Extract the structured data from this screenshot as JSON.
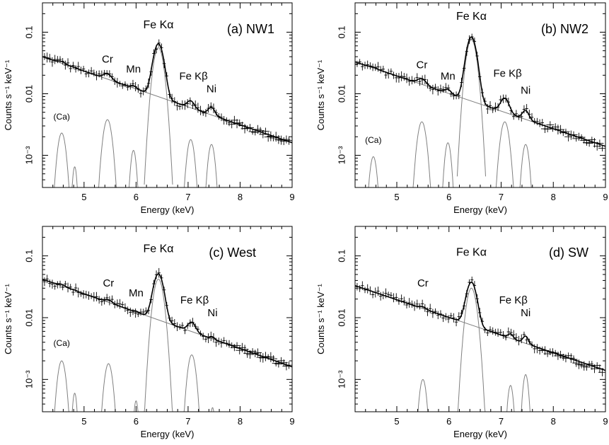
{
  "chart_data": [
    {
      "type": "line",
      "panel_label": "(a) NW1",
      "xlabel": "Energy (keV)",
      "ylabel": "Counts s⁻¹ keV⁻¹",
      "xlim": [
        4.2,
        9
      ],
      "ylim": [
        0.0003,
        0.3
      ],
      "yscale": "log",
      "x_ticks": [
        "5",
        "6",
        "7",
        "8",
        "9"
      ],
      "y_ticks": [
        "10⁻³",
        "0.01",
        "0.1"
      ],
      "continuum": {
        "x": [
          4.2,
          9
        ],
        "y": [
          0.04,
          0.0016
        ]
      },
      "lines": [
        {
          "name": "(Ca)",
          "center": 4.57,
          "amp": 0.0023,
          "sigma": 0.07,
          "label_show": true,
          "label_y": 0.0038
        },
        {
          "name": "",
          "center": 4.82,
          "amp": 0.00065,
          "sigma": 0.04,
          "label_show": false
        },
        {
          "name": "Cr",
          "center": 5.45,
          "amp": 0.0038,
          "sigma": 0.075,
          "label_show": true,
          "label_y": 0.032
        },
        {
          "name": "Mn",
          "center": 5.95,
          "amp": 0.0012,
          "sigma": 0.05,
          "label_show": true,
          "label_y": 0.022
        },
        {
          "name": "Fe Kα",
          "center": 6.43,
          "amp": 0.056,
          "sigma": 0.085,
          "label_show": true,
          "label_y": 0.115
        },
        {
          "name": "Fe Kβ",
          "center": 7.05,
          "amp": 0.0018,
          "sigma": 0.065,
          "label_show": true,
          "label_y": 0.017
        },
        {
          "name": "Ni",
          "center": 7.45,
          "amp": 0.0015,
          "sigma": 0.06,
          "label_show": true,
          "label_y": 0.0105
        }
      ]
    },
    {
      "type": "line",
      "panel_label": "(b) NW2",
      "xlabel": "Energy (keV)",
      "ylabel": "Counts s⁻¹ keV⁻¹",
      "xlim": [
        4.2,
        9
      ],
      "ylim": [
        0.0003,
        0.3
      ],
      "yscale": "log",
      "x_ticks": [
        "5",
        "6",
        "7",
        "8",
        "9"
      ],
      "y_ticks": [
        "10⁻³",
        "0.01",
        "0.1"
      ],
      "continuum": {
        "x": [
          4.2,
          9
        ],
        "y": [
          0.033,
          0.0014
        ]
      },
      "lines": [
        {
          "name": "(Ca)",
          "center": 4.55,
          "amp": 0.00095,
          "sigma": 0.06,
          "label_show": true,
          "label_y": 0.0016
        },
        {
          "name": "Cr",
          "center": 5.48,
          "amp": 0.0035,
          "sigma": 0.075,
          "label_show": true,
          "label_y": 0.026
        },
        {
          "name": "Mn",
          "center": 5.98,
          "amp": 0.0016,
          "sigma": 0.055,
          "label_show": true,
          "label_y": 0.017
        },
        {
          "name": "Fe Kα",
          "center": 6.43,
          "amp": 0.076,
          "sigma": 0.085,
          "label_show": true,
          "label_y": 0.16
        },
        {
          "name": "Fe Kβ",
          "center": 7.07,
          "amp": 0.0035,
          "sigma": 0.075,
          "label_show": true,
          "label_y": 0.019
        },
        {
          "name": "Ni",
          "center": 7.47,
          "amp": 0.0015,
          "sigma": 0.06,
          "label_show": true,
          "label_y": 0.01
        }
      ]
    },
    {
      "type": "line",
      "panel_label": "(c) West",
      "xlabel": "Energy (keV)",
      "ylabel": "Counts s⁻¹ keV⁻¹",
      "xlim": [
        4.2,
        9
      ],
      "ylim": [
        0.0003,
        0.3
      ],
      "yscale": "log",
      "x_ticks": [
        "5",
        "6",
        "7",
        "8",
        "9"
      ],
      "y_ticks": [
        "10⁻³",
        "0.01",
        "0.1"
      ],
      "continuum": {
        "x": [
          4.2,
          9
        ],
        "y": [
          0.042,
          0.0016
        ]
      },
      "lines": [
        {
          "name": "(Ca)",
          "center": 4.57,
          "amp": 0.002,
          "sigma": 0.07,
          "label_show": true,
          "label_y": 0.0035
        },
        {
          "name": "",
          "center": 4.82,
          "amp": 0.0006,
          "sigma": 0.04,
          "label_show": false
        },
        {
          "name": "Cr",
          "center": 5.47,
          "amp": 0.0018,
          "sigma": 0.07,
          "label_show": true,
          "label_y": 0.032
        },
        {
          "name": "Mn",
          "center": 6.0,
          "amp": 0.00045,
          "sigma": 0.04,
          "label_show": true,
          "label_y": 0.022
        },
        {
          "name": "Fe Kα",
          "center": 6.43,
          "amp": 0.042,
          "sigma": 0.085,
          "label_show": true,
          "label_y": 0.115
        },
        {
          "name": "Fe Kβ",
          "center": 7.07,
          "amp": 0.0025,
          "sigma": 0.07,
          "label_show": true,
          "label_y": 0.017
        },
        {
          "name": "Ni",
          "center": 7.47,
          "amp": 0.00035,
          "sigma": 0.04,
          "label_show": true,
          "label_y": 0.0105
        }
      ]
    },
    {
      "type": "line",
      "panel_label": "(d) SW",
      "xlabel": "Energy (keV)",
      "ylabel": "Counts s⁻¹ keV⁻¹",
      "xlim": [
        4.2,
        9
      ],
      "ylim": [
        0.0003,
        0.3
      ],
      "yscale": "log",
      "x_ticks": [
        "5",
        "6",
        "7",
        "8",
        "9"
      ],
      "y_ticks": [
        "10⁻³",
        "0.01",
        "0.1"
      ],
      "continuum": {
        "x": [
          4.2,
          9
        ],
        "y": [
          0.033,
          0.0014
        ]
      },
      "lines": [
        {
          "name": "Cr",
          "center": 5.5,
          "amp": 0.001,
          "sigma": 0.06,
          "label_show": true,
          "label_y": 0.032
        },
        {
          "name": "Fe Kα",
          "center": 6.43,
          "amp": 0.03,
          "sigma": 0.085,
          "label_show": true,
          "label_y": 0.1
        },
        {
          "name": "Fe Kβ",
          "center": 7.18,
          "amp": 0.0008,
          "sigma": 0.05,
          "label_show": true,
          "label_y": 0.017
        },
        {
          "name": "Ni",
          "center": 7.47,
          "amp": 0.0012,
          "sigma": 0.05,
          "label_show": true,
          "label_y": 0.0105
        }
      ]
    }
  ]
}
